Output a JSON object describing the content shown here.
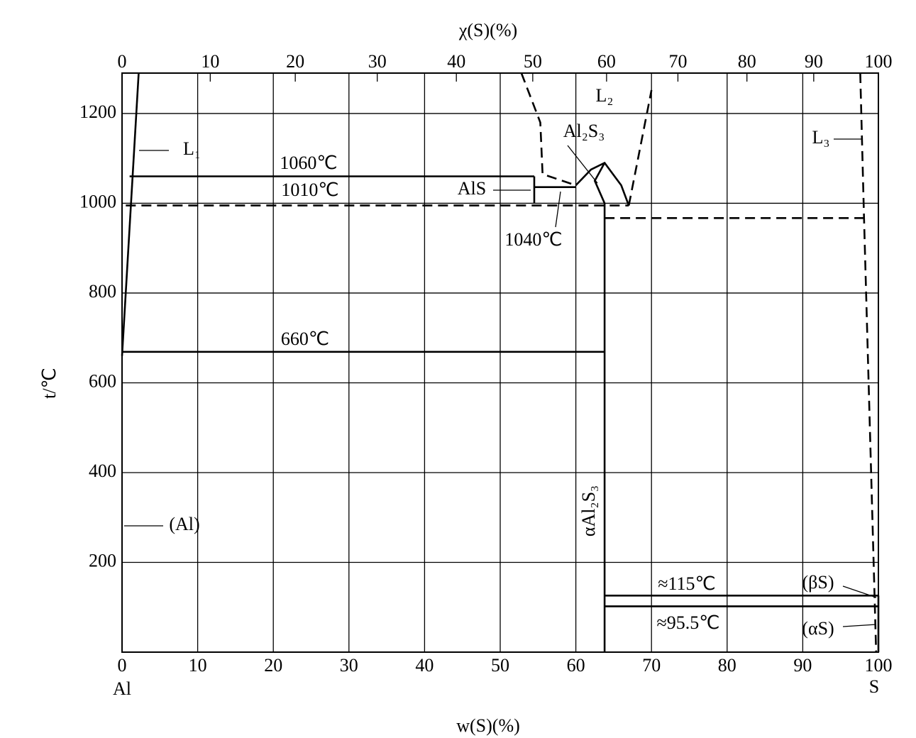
{
  "chart_data": {
    "type": "line",
    "title_top": "χ(S)(%)",
    "xlabel": "w(S)(%)",
    "ylabel": "t/℃",
    "xlim": [
      0,
      100
    ],
    "xticks": [
      0,
      10,
      20,
      30,
      40,
      50,
      60,
      70,
      80,
      90,
      100
    ],
    "x2ticks": [
      0,
      10,
      20,
      30,
      40,
      50,
      60,
      70,
      80,
      90,
      100
    ],
    "ylim": [
      0,
      1290
    ],
    "yticks": [
      200,
      400,
      600,
      800,
      1000,
      1200
    ],
    "grid": true,
    "color": "#000000",
    "series": [
      {
        "x": [
          0,
          2.2
        ],
        "values": [
          660,
          1290
        ],
        "dash": false
      },
      {
        "x": [
          1.0,
          54.5
        ],
        "values": [
          1060,
          1060
        ],
        "dash": false
      },
      {
        "x": [
          0.5,
          67
        ],
        "values": [
          995,
          995
        ],
        "dash": true
      },
      {
        "x": [
          54.5,
          54.5
        ],
        "values": [
          1000,
          1060
        ],
        "dash": false
      },
      {
        "x": [
          54.5,
          60
        ],
        "values": [
          1036,
          1036
        ],
        "dash": false
      },
      {
        "x": [
          52.8,
          55.3,
          55.6,
          60
        ],
        "values": [
          1290,
          1180,
          1065,
          1040
        ],
        "dash": true
      },
      {
        "x": [
          60,
          62,
          63.8,
          66,
          67
        ],
        "values": [
          1040,
          1075,
          1090,
          1040,
          995
        ],
        "dash": false
      },
      {
        "x": [
          63.8,
          62.5,
          63.8
        ],
        "values": [
          1090,
          1050,
          1000
        ],
        "dash": false
      },
      {
        "x": [
          67,
          70
        ],
        "values": [
          995,
          1252
        ],
        "dash": true
      },
      {
        "x": [
          63.8,
          63.8
        ],
        "values": [
          0,
          1000
        ],
        "dash": false
      },
      {
        "x": [
          0,
          63.8
        ],
        "values": [
          669,
          669
        ],
        "dash": false
      },
      {
        "x": [
          63.8,
          98.1
        ],
        "values": [
          967,
          967
        ],
        "dash": true
      },
      {
        "x": [
          97.6,
          98.1,
          99.7
        ],
        "values": [
          1290,
          967,
          0
        ],
        "dash": true
      },
      {
        "x": [
          63.8,
          100
        ],
        "values": [
          126,
          126
        ],
        "dash": false
      },
      {
        "x": [
          63.8,
          100
        ],
        "values": [
          102,
          102
        ],
        "dash": false
      },
      {
        "x": [
          100,
          100
        ],
        "values": [
          0,
          126
        ],
        "dash": false
      }
    ],
    "annotations": [
      "L₁",
      "1060℃",
      "1010℃",
      "AlS",
      "1040℃",
      "Al₂S₃",
      "L₂",
      "L₃",
      "660℃",
      "αAl₂S₃",
      "(Al)",
      "≈115℃",
      "≈95.5℃",
      "(βS)",
      "(αS)",
      "Al",
      "S"
    ]
  }
}
